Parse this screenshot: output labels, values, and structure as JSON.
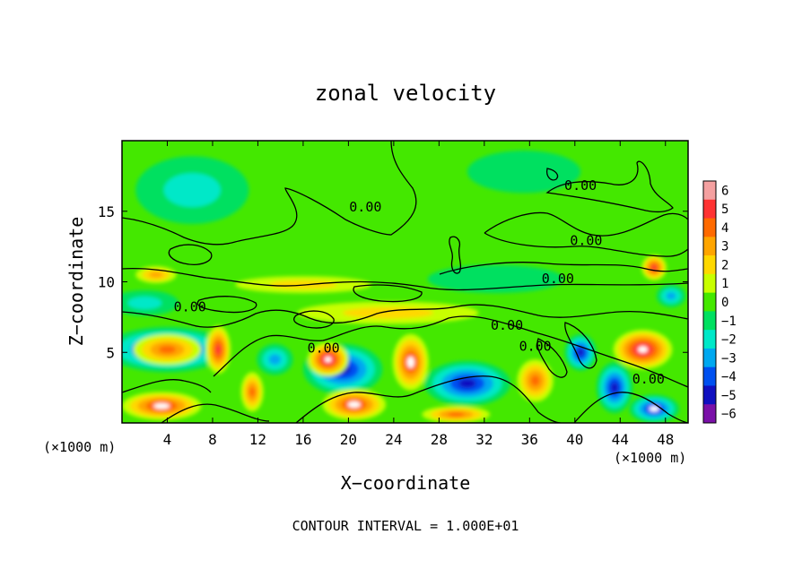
{
  "chart_data": {
    "type": "heatmap",
    "title": "zonal velocity",
    "xlabel": "X−coordinate",
    "ylabel": "Z−coordinate",
    "x_unit_left": "(×1000 m)",
    "x_unit_right": "(×1000 m)",
    "footer": "CONTOUR INTERVAL = 1.000E+01",
    "xlim": [
      0,
      50
    ],
    "ylim": [
      0,
      20
    ],
    "x_ticks": [
      4,
      8,
      12,
      16,
      20,
      24,
      28,
      32,
      36,
      40,
      44,
      48
    ],
    "y_ticks": [
      5,
      10,
      15
    ],
    "colorbar": {
      "levels": [
        6,
        5,
        4,
        3,
        2,
        1,
        0,
        -1,
        -2,
        -3,
        -4,
        -5,
        -6
      ],
      "labels": [
        "6",
        "5",
        "4",
        "3",
        "2",
        "1",
        "0",
        "−1",
        "−2",
        "−3",
        "−4",
        "−5",
        "−6"
      ],
      "colors": [
        "#f4a0a0",
        "#ff3333",
        "#ff6a00",
        "#ffa500",
        "#ffd800",
        "#c8ff00",
        "#44e800",
        "#00e060",
        "#00e8c8",
        "#00a8f0",
        "#0050f0",
        "#1010c0",
        "#7a10a8"
      ]
    },
    "contour_labels": [
      {
        "text": "0.00",
        "x": 21.5,
        "z": 15.0
      },
      {
        "text": "0.00",
        "x": 40.5,
        "z": 16.5
      },
      {
        "text": "0.00",
        "x": 41.0,
        "z": 12.6
      },
      {
        "text": "0.00",
        "x": 38.5,
        "z": 9.9
      },
      {
        "text": "0.00",
        "x": 6.0,
        "z": 7.9
      },
      {
        "text": "0.00",
        "x": 17.8,
        "z": 5.0
      },
      {
        "text": "0.00",
        "x": 34.0,
        "z": 6.6
      },
      {
        "text": "0.00",
        "x": 36.5,
        "z": 5.1
      },
      {
        "text": "0.00",
        "x": 46.5,
        "z": 2.8
      }
    ],
    "features": [
      {
        "x": 6.2,
        "z": 16.5,
        "value": -1.8,
        "sx": 5.0,
        "sz": 2.4
      },
      {
        "x": 35.5,
        "z": 17.8,
        "value": -0.8,
        "sx": 5.0,
        "sz": 1.5
      },
      {
        "x": 3.0,
        "z": 10.5,
        "value": 2.5,
        "sx": 1.8,
        "sz": 0.6
      },
      {
        "x": 47.0,
        "z": 11.0,
        "value": 4.5,
        "sx": 1.1,
        "sz": 0.9
      },
      {
        "x": 2.0,
        "z": 8.5,
        "value": -2.2,
        "sx": 3.0,
        "sz": 0.9
      },
      {
        "x": 48.5,
        "z": 9.0,
        "value": -3.0,
        "sx": 1.3,
        "sz": 0.8
      },
      {
        "x": 4.0,
        "z": 5.2,
        "value": -4.5,
        "sx": 5.5,
        "sz": 1.6
      },
      {
        "x": 4.0,
        "z": 5.2,
        "value": 3.5,
        "sx": 3.0,
        "sz": 1.1
      },
      {
        "x": 3.5,
        "z": 1.2,
        "value": 5.0,
        "sx": 3.5,
        "sz": 1.0
      },
      {
        "x": 8.5,
        "z": 5.2,
        "value": 4.8,
        "sx": 1.1,
        "sz": 1.7
      },
      {
        "x": 11.5,
        "z": 2.2,
        "value": 4.0,
        "sx": 1.0,
        "sz": 1.4
      },
      {
        "x": 13.5,
        "z": 4.5,
        "value": -2.5,
        "sx": 1.6,
        "sz": 1.1
      },
      {
        "x": 19.5,
        "z": 3.8,
        "value": -4.5,
        "sx": 3.5,
        "sz": 1.8
      },
      {
        "x": 18.2,
        "z": 4.5,
        "value": 5.5,
        "sx": 1.8,
        "sz": 1.2
      },
      {
        "x": 20.5,
        "z": 1.3,
        "value": 5.0,
        "sx": 2.8,
        "sz": 1.1
      },
      {
        "x": 25.5,
        "z": 4.3,
        "value": 5.2,
        "sx": 1.6,
        "sz": 2.0
      },
      {
        "x": 30.5,
        "z": 2.8,
        "value": -4.8,
        "sx": 3.8,
        "sz": 1.6
      },
      {
        "x": 29.5,
        "z": 0.6,
        "value": 4.0,
        "sx": 3.0,
        "sz": 0.6
      },
      {
        "x": 36.5,
        "z": 3.0,
        "value": 3.5,
        "sx": 1.6,
        "sz": 1.5
      },
      {
        "x": 40.5,
        "z": 5.0,
        "value": -4.8,
        "sx": 1.4,
        "sz": 1.3
      },
      {
        "x": 43.5,
        "z": 2.5,
        "value": -4.5,
        "sx": 1.6,
        "sz": 1.8
      },
      {
        "x": 46.0,
        "z": 5.2,
        "value": 5.5,
        "sx": 2.6,
        "sz": 1.4
      },
      {
        "x": 47.0,
        "z": 1.0,
        "value": -5.0,
        "sx": 2.2,
        "sz": 1.0
      },
      {
        "x": 23.5,
        "z": 7.8,
        "value": 1.8,
        "sx": 8.0,
        "sz": 0.8
      },
      {
        "x": 16.0,
        "z": 9.8,
        "value": 1.5,
        "sx": 6.0,
        "sz": 0.6
      },
      {
        "x": 33.0,
        "z": 10.2,
        "value": -0.6,
        "sx": 6.0,
        "sz": 1.0
      }
    ]
  }
}
